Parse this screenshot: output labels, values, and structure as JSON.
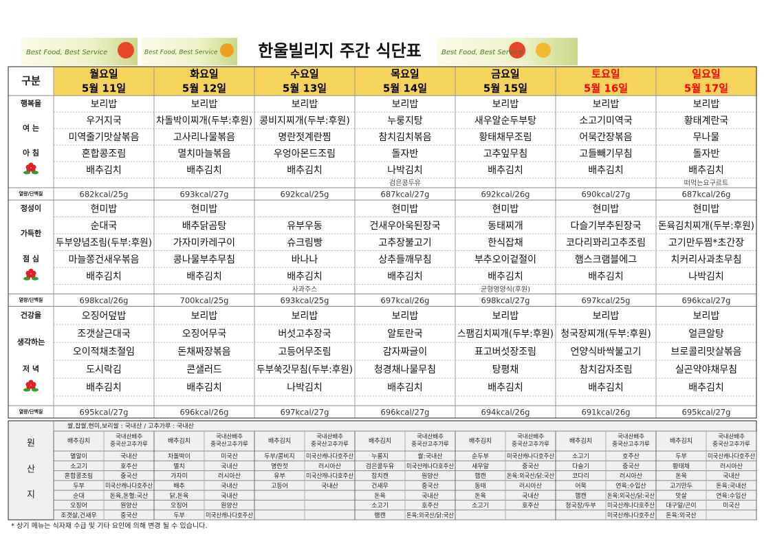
{
  "header": {
    "title": "한울빌리지 주간 식단표",
    "banner_text": "Best Food, Best Service"
  },
  "corner_label": "구분",
  "days": [
    {
      "day": "월요일",
      "date": "5월 11일",
      "color": "#000000"
    },
    {
      "day": "화요일",
      "date": "5월 12일",
      "color": "#000000"
    },
    {
      "day": "수요일",
      "date": "5월 13일",
      "color": "#000000"
    },
    {
      "day": "목요일",
      "date": "5월 14일",
      "color": "#000000"
    },
    {
      "day": "금요일",
      "date": "5월 15일",
      "color": "#000000"
    },
    {
      "day": "토요일",
      "date": "5월 16일",
      "color": "#ff0000"
    },
    {
      "day": "일요일",
      "date": "5월 17일",
      "color": "#ff0000"
    }
  ],
  "meals": [
    {
      "label": [
        "행복을",
        "여 는",
        "아 침"
      ],
      "kcal_label": "열량/단백질",
      "menus": [
        {
          "items": [
            "보리밥",
            "우거지국",
            "미역줄기맛살볶음",
            "혼합콩조림",
            "배추김치"
          ],
          "extra": null,
          "kcal": "682kcal/25g"
        },
        {
          "items": [
            "보리밥",
            "차돌박이찌개(두부:후원)",
            "고사리나물볶음",
            "멸치마늘볶음",
            "배추김치"
          ],
          "extra": null,
          "kcal": "693kcal/27g"
        },
        {
          "items": [
            "보리밥",
            "콩비지찌개(두부:후원)",
            "명란젓계란찜",
            "우엉아몬드조림",
            "배추김치"
          ],
          "extra": null,
          "kcal": "692kcal/25g"
        },
        {
          "items": [
            "보리밥",
            "누룽지탕",
            "참치김치볶음",
            "돌자반",
            "나박김치"
          ],
          "extra": "검은콩두유",
          "kcal": "687kcal/27g"
        },
        {
          "items": [
            "보리밥",
            "새우알순두부탕",
            "황태채무조림",
            "고추잎무침",
            "배추김치"
          ],
          "extra": null,
          "kcal": "692kcal/26g"
        },
        {
          "items": [
            "보리밥",
            "소고기미역국",
            "어묵간장볶음",
            "고들빼기무침",
            "배추김치"
          ],
          "extra": null,
          "kcal": "690kcal/27g"
        },
        {
          "items": [
            "보리밥",
            "황태계란국",
            "무나물",
            "돌자반",
            "배추김치"
          ],
          "extra": "떠먹는요구르트",
          "kcal": "687kcal/26g"
        }
      ]
    },
    {
      "label": [
        "정성이",
        "가득한",
        "점 심"
      ],
      "kcal_label": "열량/단백질",
      "menus": [
        {
          "items": [
            "현미밥",
            "순대국",
            "두부양념조림(두부:후원)",
            "마늘쫑건새우볶음",
            "배추김치"
          ],
          "extra": null,
          "kcal": "698kcal/26g"
        },
        {
          "items": [
            "현미밥",
            "배추닭곰탕",
            "가자미카레구이",
            "콩나물부추무침",
            "배추김치"
          ],
          "extra": null,
          "kcal": "700kcal/25g"
        },
        {
          "items": [
            null,
            "유부우동",
            "슈크림빵",
            "바나나",
            "배추김치"
          ],
          "extra": "사과주스",
          "kcal": "693kcal/25g"
        },
        {
          "items": [
            "현미밥",
            "건새우아욱된장국",
            "고추장불고기",
            "상추들깨무침",
            "배추김치"
          ],
          "extra": null,
          "kcal": "697kcal/26g"
        },
        {
          "items": [
            "현미밥",
            "동태찌개",
            "한식잡채",
            "부추오이겉절이",
            "배추김치"
          ],
          "extra": "균형영양식(후원)",
          "kcal": "698kcal/27g"
        },
        {
          "items": [
            "현미밥",
            "다슬기부추된장국",
            "코다리꽈리고추조림",
            "햄스크램블에그",
            "배추김치"
          ],
          "extra": null,
          "kcal": "697kcal/25g"
        },
        {
          "items": [
            "현미밥",
            "돈육김치찌개(두부:후원)",
            "고기만두찜*초간장",
            "치커리사과초무침",
            "나박김치"
          ],
          "extra": null,
          "kcal": "696kcal/27g"
        }
      ]
    },
    {
      "label": [
        "건강을",
        "생각하는",
        "저 녁"
      ],
      "kcal_label": "열량/단백질",
      "menus": [
        {
          "items": [
            "오징어덮밥",
            "조갯살근대국",
            "오이적채초절임",
            "도시락김",
            "배추김치"
          ],
          "extra": null,
          "kcal": "695kcal/27g"
        },
        {
          "items": [
            "보리밥",
            "오징어무국",
            "돈채짜장볶음",
            "콘샐러드",
            "배추김치"
          ],
          "extra": null,
          "kcal": "696kcal/26g"
        },
        {
          "items": [
            "보리밥",
            "버섯고추장국",
            "고등어무조림",
            "두부쑥갓무침(두부:후원)",
            "나박김치"
          ],
          "extra": null,
          "kcal": "697kcal/27g"
        },
        {
          "items": [
            "보리밥",
            "알토란국",
            "감자짜글이",
            "청경채나물무침",
            "배추김치"
          ],
          "extra": null,
          "kcal": "696kcal/27g"
        },
        {
          "items": [
            "보리밥",
            "스팸김치찌개(두부:후원)",
            "표고버섯장조림",
            "탕평채",
            "배추김치"
          ],
          "extra": null,
          "kcal": "694kcal/26g"
        },
        {
          "items": [
            "보리밥",
            "청국장찌개(두부:후원)",
            "언양식바싹불고기",
            "참치감자조림",
            "배추김치"
          ],
          "extra": null,
          "kcal": "691kcal/26g"
        },
        {
          "items": [
            "보리밥",
            "얼큰알탕",
            "브로콜리맛살볶음",
            "실곤약야채무침",
            "배추김치"
          ],
          "extra": null,
          "kcal": "695kcal/27g"
        }
      ]
    }
  ],
  "origin": {
    "label": [
      "원",
      "산",
      "지"
    ],
    "note": "쌀,찹쌀,현미,보리쌀 : 국내산 / 고추가루 : 국내산",
    "kimchi_item": "배추김치",
    "kimchi_origin": [
      "국내산배추",
      "중국산고추가루"
    ],
    "rows": [
      [
        "멸알이",
        "국내산",
        "차돌박이",
        "미국산",
        "두부/콩비지",
        "미국산캐나다호주산",
        "누룽지",
        "쌀:국내산",
        "순두부",
        "미국산캐나다호주산",
        "소고기",
        "호주산",
        "두부",
        "미국산캐나다호주산"
      ],
      [
        "소고기",
        "호주산",
        "멸치",
        "국내산",
        "명란젓",
        "러시아산",
        "검은콩두유",
        "미국산캐나다호주산",
        "새우알",
        "중국산",
        "다슬기",
        "중국산",
        "황태채",
        "러시아산"
      ],
      [
        "혼합콩조림",
        "중국산",
        "가자미",
        "러시아산",
        "유부",
        "미국산캐나다호주산",
        "참치캔",
        "원양산",
        "햄캔",
        "돈육:외국산/닭:국산",
        "코다리",
        "러시아산",
        "돈육",
        "국내산"
      ],
      [
        "두부",
        "미국산캐나다호주산",
        "배추",
        "국내산",
        "고등어",
        "국내산",
        "건새우",
        "중국산",
        "동태",
        "러시아산",
        "어묵",
        "연육:수입산",
        "고기만두",
        "돈육:국내산"
      ],
      [
        "순대",
        "돈육,돈혈:국산",
        "닭,돈육",
        "국내산",
        null,
        null,
        "돈육",
        "국내산",
        "돈육",
        "국내산",
        "햄캔",
        "돈육:외국산/닭:국산",
        "맛살",
        "연육:수입산"
      ],
      [
        "오징어",
        "원양산",
        "오징어",
        "원양산",
        null,
        null,
        "소고기",
        "호주산",
        "소고기",
        "호주산",
        "청국장/두부",
        "미국산캐나다호주산",
        "대구알/곤이",
        "미국산"
      ],
      [
        "조갯살,건새우",
        "중국산",
        "두부",
        "미국산캐나다호주산",
        null,
        null,
        "햄캔",
        "돈육:외국산/닭:국산",
        null,
        null,
        null,
        "미국산캐나다호주산",
        "돈육:외국산",
        null
      ]
    ]
  },
  "footnote": "* 상기 메뉴는 식자재 수급 및 기타 요인에 의해 변경 될 수 있습니다."
}
